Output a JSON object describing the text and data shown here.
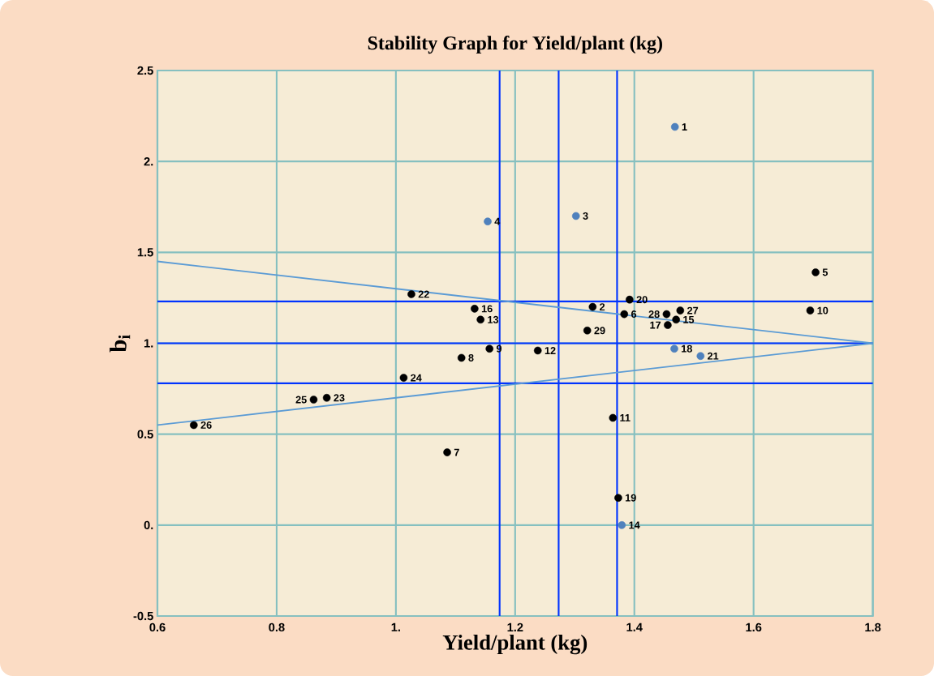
{
  "chart_data": {
    "type": "scatter",
    "title": "Stability Graph for Yield/plant (kg)",
    "xlabel": "Yield/plant (kg)",
    "ylabel": "b$_{i}$",
    "xlim": [
      0.6,
      1.8
    ],
    "ylim": [
      -0.5,
      2.5
    ],
    "xticks": [
      0.6,
      0.8,
      {
        "value": 1,
        "label": "1."
      },
      1.2,
      1.4,
      1.6,
      1.8
    ],
    "yticks": [
      -0.5,
      {
        "value": 0,
        "label": "0."
      },
      0.5,
      {
        "value": 1,
        "label": "1."
      },
      1.5,
      {
        "value": 2,
        "label": "2."
      },
      2.5
    ],
    "grid": true,
    "series": [
      {
        "color": "#4f81bd",
        "marker": "circle",
        "x": [
          1.468,
          1.302,
          1.154,
          1.379,
          1.467,
          1.511
        ],
        "values": [
          2.19,
          1.7,
          1.67,
          0.0,
          0.97,
          0.93
        ]
      },
      {
        "color": "#000000",
        "marker": "circle",
        "x": [
          1.33,
          1.704,
          1.383,
          1.086,
          1.11,
          1.157,
          1.695,
          1.364,
          1.238,
          1.142,
          1.47,
          1.132,
          1.456,
          1.373,
          1.392,
          1.026,
          0.884,
          1.013,
          0.862,
          0.661,
          1.477,
          1.454,
          1.321
        ],
        "values": [
          1.2,
          1.39,
          1.16,
          0.4,
          0.92,
          0.97,
          1.18,
          0.59,
          0.96,
          1.13,
          1.13,
          1.19,
          1.1,
          0.15,
          1.24,
          1.27,
          0.7,
          0.81,
          0.69,
          0.55,
          1.18,
          1.16,
          1.07
        ]
      },
      {
        "type": "line",
        "color": "#5b9bd5",
        "x": [
          0.6,
          1.8
        ],
        "values": [
          1.45,
          1.0
        ]
      },
      {
        "type": "line",
        "color": "#5b9bd5",
        "x": [
          0.6,
          1.8
        ],
        "values": [
          0.55,
          1.0
        ]
      }
    ],
    "ref_lines": [
      {
        "axis": "x",
        "value": 1.174,
        "color": "#0033ff"
      },
      {
        "axis": "x",
        "value": 1.273,
        "color": "#0033ff"
      },
      {
        "axis": "x",
        "value": 1.371,
        "color": "#0033ff"
      },
      {
        "axis": "y",
        "value": 1.23,
        "color": "#0033ff"
      },
      {
        "axis": "y",
        "value": 1.0,
        "color": "#0033ff"
      },
      {
        "axis": "y",
        "value": 0.78,
        "color": "#0033ff"
      }
    ],
    "annotations": [
      {
        "text": "1",
        "x": 1.468,
        "y": 2.19
      },
      {
        "text": "2",
        "x": 1.33,
        "y": 1.2
      },
      {
        "text": "3",
        "x": 1.302,
        "y": 1.7
      },
      {
        "text": "4",
        "x": 1.154,
        "y": 1.67
      },
      {
        "text": "5",
        "x": 1.704,
        "y": 1.39
      },
      {
        "text": "6",
        "x": 1.383,
        "y": 1.16
      },
      {
        "text": "7",
        "x": 1.086,
        "y": 0.4
      },
      {
        "text": "8",
        "x": 1.11,
        "y": 0.92
      },
      {
        "text": "9",
        "x": 1.157,
        "y": 0.97
      },
      {
        "text": "10",
        "x": 1.695,
        "y": 1.18
      },
      {
        "text": "11",
        "x": 1.364,
        "y": 0.59
      },
      {
        "text": "12",
        "x": 1.238,
        "y": 0.96
      },
      {
        "text": "13",
        "x": 1.142,
        "y": 1.13
      },
      {
        "text": "14",
        "x": 1.379,
        "y": 0.0
      },
      {
        "text": "15",
        "x": 1.47,
        "y": 1.13
      },
      {
        "text": "16",
        "x": 1.132,
        "y": 1.19
      },
      {
        "text": "17",
        "x": 1.456,
        "y": 1.1
      },
      {
        "text": "18",
        "x": 1.467,
        "y": 0.97
      },
      {
        "text": "19",
        "x": 1.373,
        "y": 0.15
      },
      {
        "text": "20",
        "x": 1.392,
        "y": 1.24
      },
      {
        "text": "21",
        "x": 1.511,
        "y": 0.93
      },
      {
        "text": "22",
        "x": 1.026,
        "y": 1.27
      },
      {
        "text": "23",
        "x": 0.884,
        "y": 0.7
      },
      {
        "text": "24",
        "x": 1.013,
        "y": 0.81
      },
      {
        "text": "25",
        "x": 0.862,
        "y": 0.69
      },
      {
        "text": "26",
        "x": 0.661,
        "y": 0.55
      },
      {
        "text": "27",
        "x": 1.477,
        "y": 1.18
      },
      {
        "text": "28",
        "x": 1.454,
        "y": 1.16
      },
      {
        "text": "29",
        "x": 1.321,
        "y": 1.07
      }
    ]
  }
}
